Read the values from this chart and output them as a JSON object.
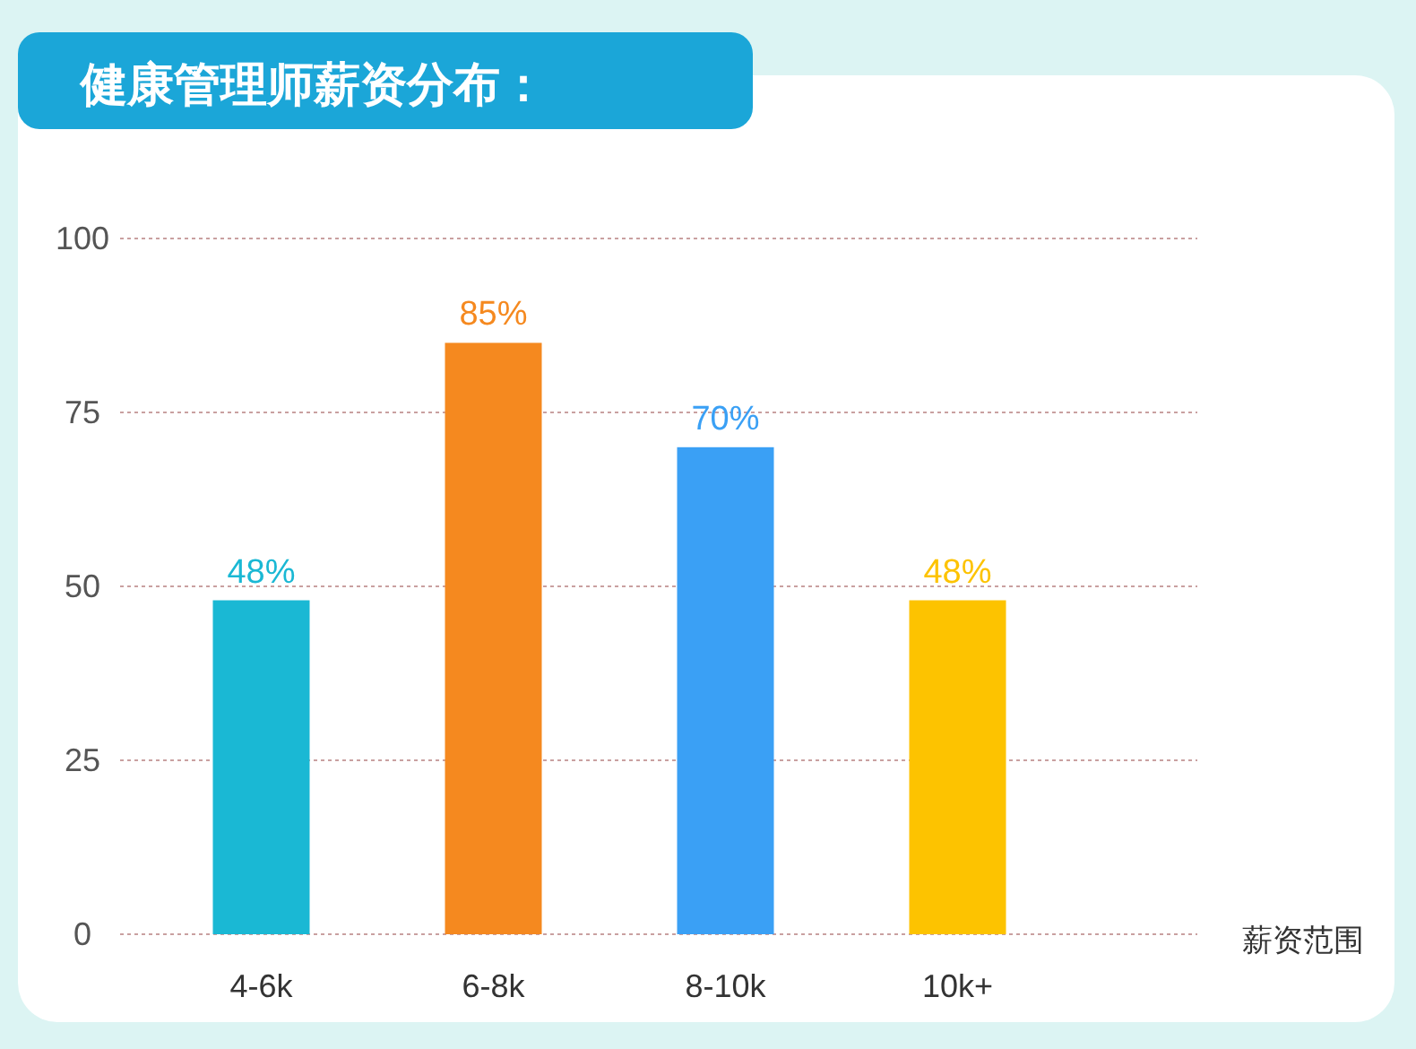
{
  "chart_data": {
    "type": "bar",
    "title": "健康管理师薪资分布：",
    "xlabel": "薪资范围",
    "categories": [
      "4-6k",
      "6-8k",
      "8-10k",
      "10k+"
    ],
    "values": [
      48,
      85,
      70,
      48
    ],
    "colors": [
      "#1ab8d4",
      "#f5891f",
      "#3aa0f5",
      "#fdc300"
    ],
    "value_labels": [
      "48%",
      "85%",
      "70%",
      "48%"
    ],
    "ylim": [
      0,
      100
    ],
    "yticks": [
      0,
      25,
      50,
      75,
      100
    ],
    "grid": "y"
  }
}
